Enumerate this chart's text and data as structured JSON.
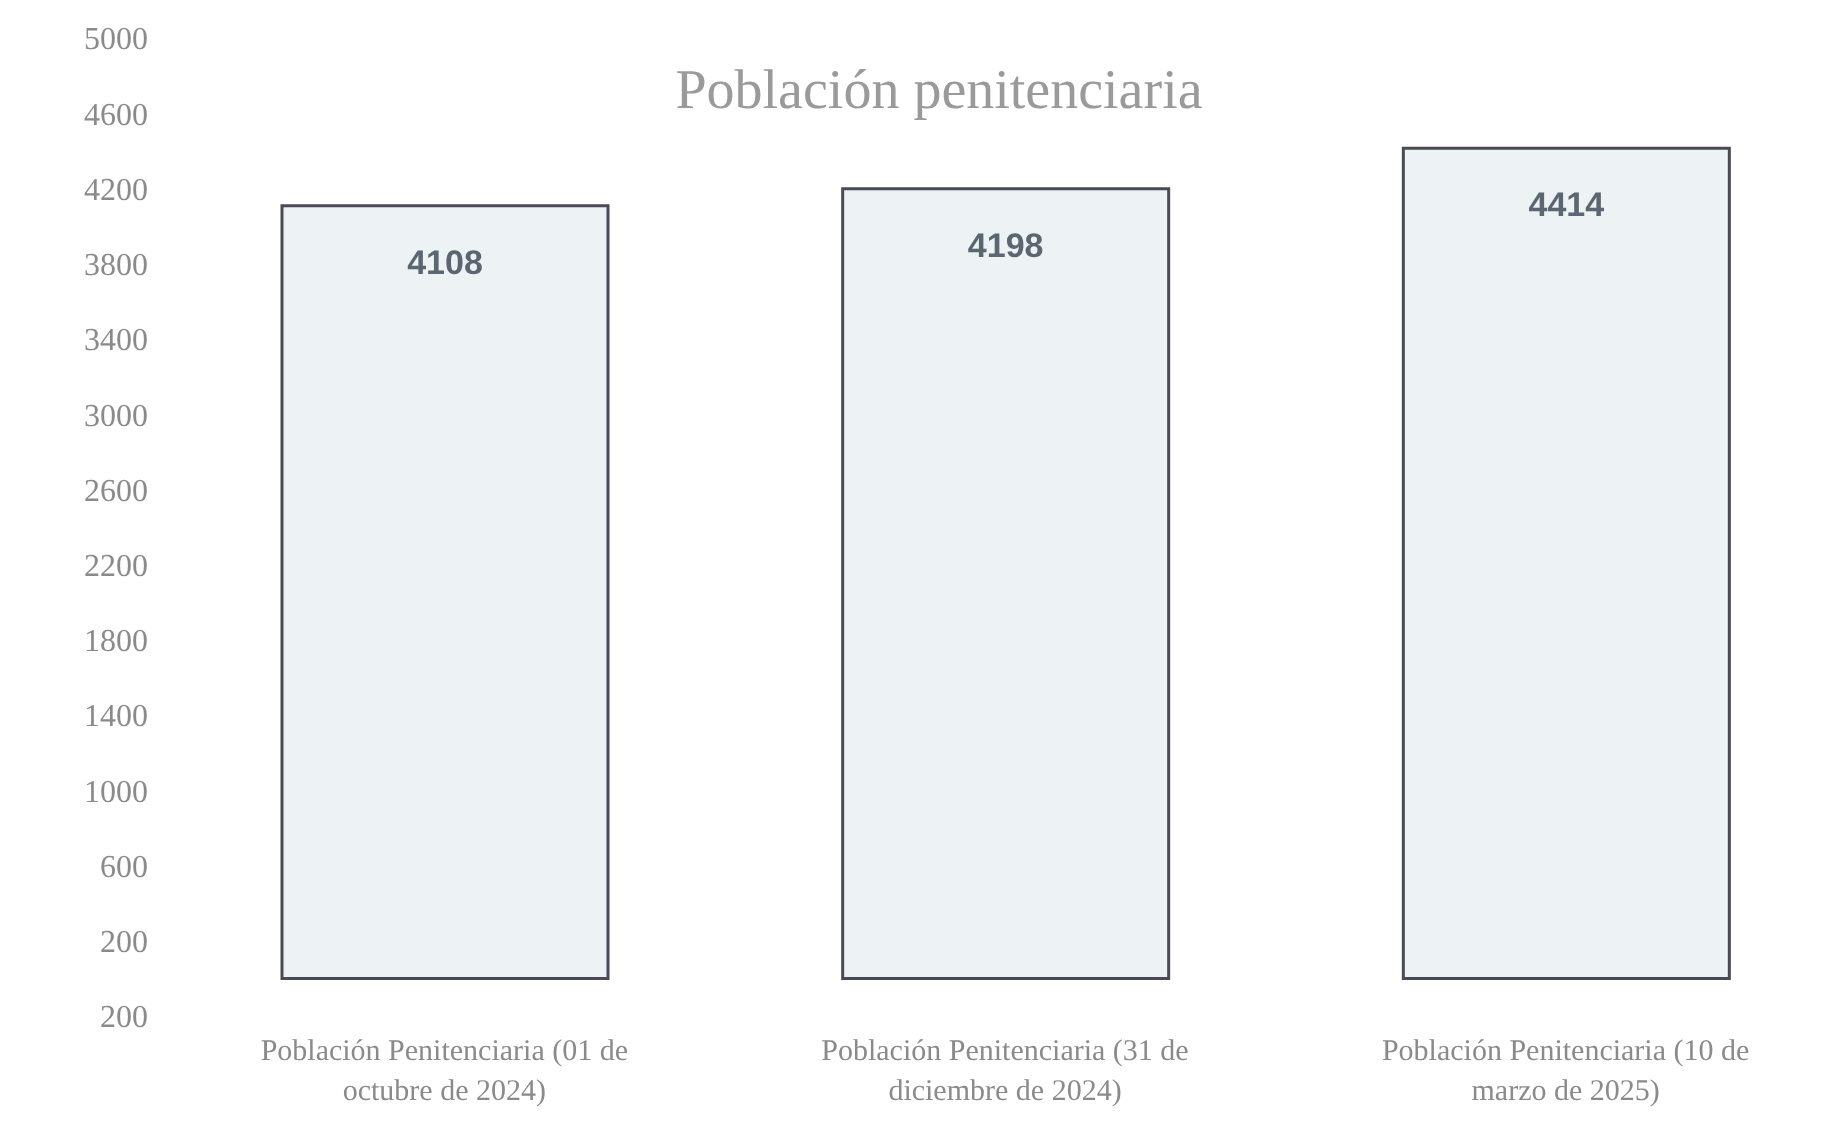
{
  "chart_data": {
    "type": "bar",
    "title": "Población penitenciaria",
    "categories": [
      "Población Penitenciaria (01 de octubre de 2024)",
      "Población Penitenciaria (31 de diciembre de 2024)",
      "Población Penitenciaria (10 de marzo de 2025)"
    ],
    "values": [
      4108,
      4198,
      4414
    ],
    "color": "#edf2f4",
    "ylim": [
      -200,
      5000
    ],
    "yticks": [
      {
        "value": -200,
        "label": "200"
      },
      200,
      600,
      1000,
      1400,
      1800,
      2200,
      2600,
      3000,
      3400,
      3800,
      4200,
      4600,
      5000
    ],
    "data_labels": true,
    "grid": false,
    "legend": false
  }
}
